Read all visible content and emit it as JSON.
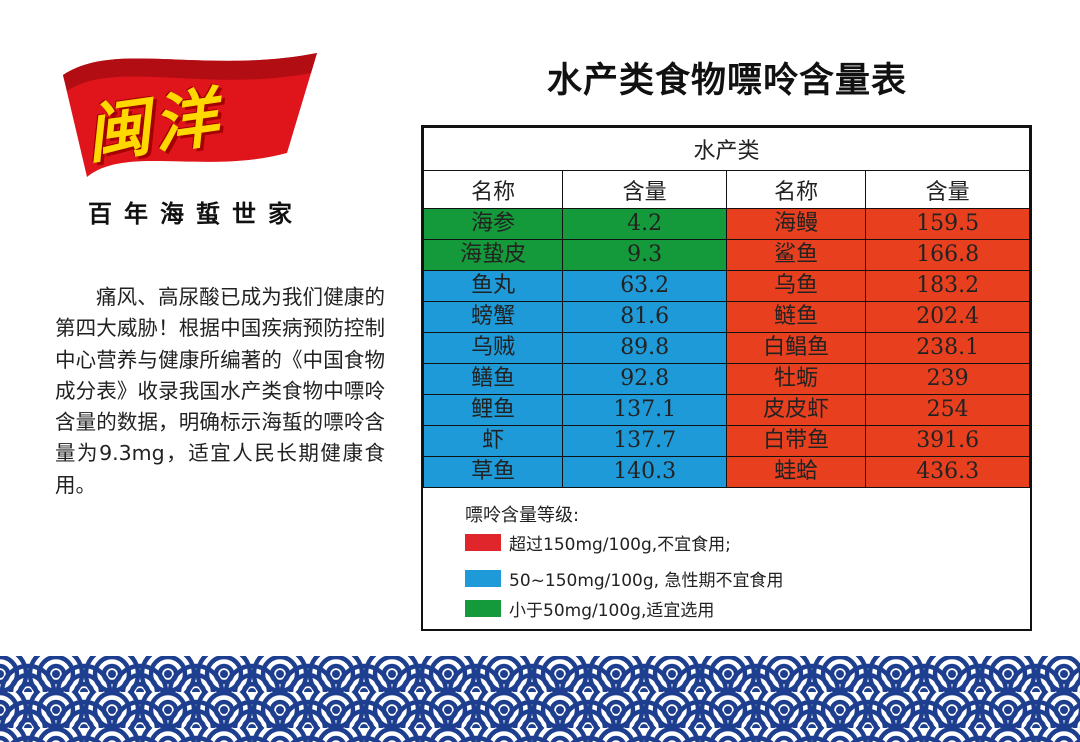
{
  "brand": {
    "logo_text": "闽洋",
    "slogan": "百年海蜇世家"
  },
  "description": "痛风、高尿酸已成为我们健康的第四大威胁！根据中国疾病预防控制中心营养与健康所编著的《中国食物成分表》收录我国水产类食物中嘌呤含量的数据，明确标示海蜇的嘌呤含量为9.3mg，适宜人民长期健康食用。",
  "title": "水产类食物嘌呤含量表",
  "table": {
    "caption": "水产类",
    "headers": [
      "名称",
      "含量",
      "名称",
      "含量"
    ],
    "rows": [
      {
        "left_name": "海参",
        "left_value": "4.2",
        "left_level": "low",
        "right_name": "海鳗",
        "right_value": "159.5",
        "right_level": "high"
      },
      {
        "left_name": "海蛰皮",
        "left_value": "9.3",
        "left_level": "low",
        "right_name": "鲨鱼",
        "right_value": "166.8",
        "right_level": "high"
      },
      {
        "left_name": "鱼丸",
        "left_value": "63.2",
        "left_level": "mid",
        "right_name": "乌鱼",
        "right_value": "183.2",
        "right_level": "high"
      },
      {
        "left_name": "螃蟹",
        "left_value": "81.6",
        "left_level": "mid",
        "right_name": "鲢鱼",
        "right_value": "202.4",
        "right_level": "high"
      },
      {
        "left_name": "乌贼",
        "left_value": "89.8",
        "left_level": "mid",
        "right_name": "白鲳鱼",
        "right_value": "238.1",
        "right_level": "high"
      },
      {
        "left_name": "鳝鱼",
        "left_value": "92.8",
        "left_level": "mid",
        "right_name": "牡蛎",
        "right_value": "239",
        "right_level": "high"
      },
      {
        "left_name": "鲤鱼",
        "left_value": "137.1",
        "left_level": "mid",
        "right_name": "皮皮虾",
        "right_value": "254",
        "right_level": "high"
      },
      {
        "left_name": "虾",
        "left_value": "137.7",
        "left_level": "mid",
        "right_name": "白带鱼",
        "right_value": "391.6",
        "right_level": "high"
      },
      {
        "left_name": "草鱼",
        "left_value": "140.3",
        "left_level": "mid",
        "right_name": "蛙蛤",
        "right_value": "436.3",
        "right_level": "high"
      }
    ]
  },
  "legend": {
    "title": "嘌呤含量等级:",
    "items": [
      {
        "level": "high",
        "color": "#e0262b",
        "label": "超过150mg/100g,不宜食用;"
      },
      {
        "level": "mid",
        "color": "#1e9ad8",
        "label": "50~150mg/100g, 急性期不宜食用"
      },
      {
        "level": "low",
        "color": "#159a3b",
        "label": "小于50mg/100g,适宜选用"
      }
    ]
  },
  "colors": {
    "low": "#159a3b",
    "mid": "#1e9ad8",
    "high": "#e8401f",
    "wave": "#1e3f8f",
    "logo_red": "#e0141b",
    "logo_yellow": "#ffd800"
  }
}
